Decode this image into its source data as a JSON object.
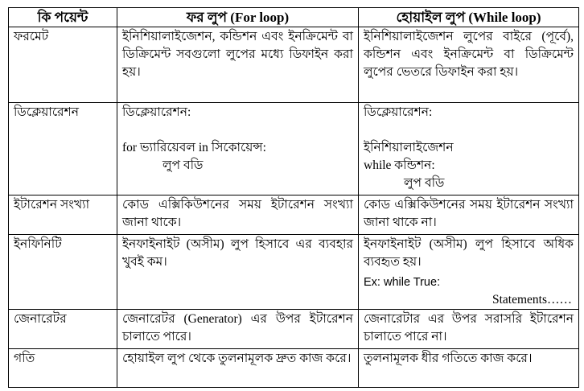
{
  "header": {
    "col1": "কি পয়েন্ট",
    "col2": "ফর লুপ (For loop)",
    "col3": "হোয়াইল লুপ  (While loop)"
  },
  "rows": [
    {
      "point": "ফরমেট",
      "for": "ইনিশিয়ালাইজেশন, কন্ডিশন এবং ইনক্রিমেন্ট বা ডিক্রিমেন্ট সবগুলো লুপের মধ্যে ডিফাইন করা হয়।",
      "while": "ইনিশিয়ালাইজেশন লুপের বাইরে (পূর্বে), কন্ডিশন এবং ইনক্রিমেন্ট বা ডিক্রিমেন্ট লুপের ভেতরে ডিফাইন করা হয়।"
    },
    {
      "point": "ডিক্লেয়ারেশন",
      "for_title": "ডিক্লেয়ারেশন:",
      "for_line1": "for ভ্যারিয়েবল in সিকোয়েন্স:",
      "for_line2": "লুপ বডি",
      "while_title": "ডিক্লেয়ারেশন:",
      "while_line1": "ইনিশিয়ালাইজেশন",
      "while_line2": "while কন্ডিশন:",
      "while_line3": "লুপ বডি"
    },
    {
      "point": "ইটারেশন সংখ্যা",
      "for": "কোড এক্সিকিউশনের সময় ইটারেশন সংখ্যা জানা থাকে।",
      "while": "কোড এক্সিকিউশনের সময় ইটারেশন সংখ্যা জানা থাকে না।"
    },
    {
      "point": "ইনফিনিটি",
      "for": "ইনফাইনাইট (অসীম) লুপ হিসাবে এর ব্যবহার খুবই কম।",
      "while": "ইনফাইনাইট (অসীম) লুপ হিসাবে অধিক ব্যবহৃত হয়।",
      "while_ex1": "Ex: while True:",
      "while_ex2": "Statements……"
    },
    {
      "point": "জেনারেটর",
      "for": "জেনারেটর (Generator) এর উপর ইটারেশন চালাতে পারে।",
      "while": "জেনারেটার এর উপর সরাসরি ইটারেশন চালাতে পারে না।"
    },
    {
      "point": "গতি",
      "for": "হোয়াইল লুপ থেকে তুলনামূলক দ্রুত কাজ করে।",
      "while": "তুলনামূলক ধীর গতিতে কাজ করে।"
    }
  ]
}
